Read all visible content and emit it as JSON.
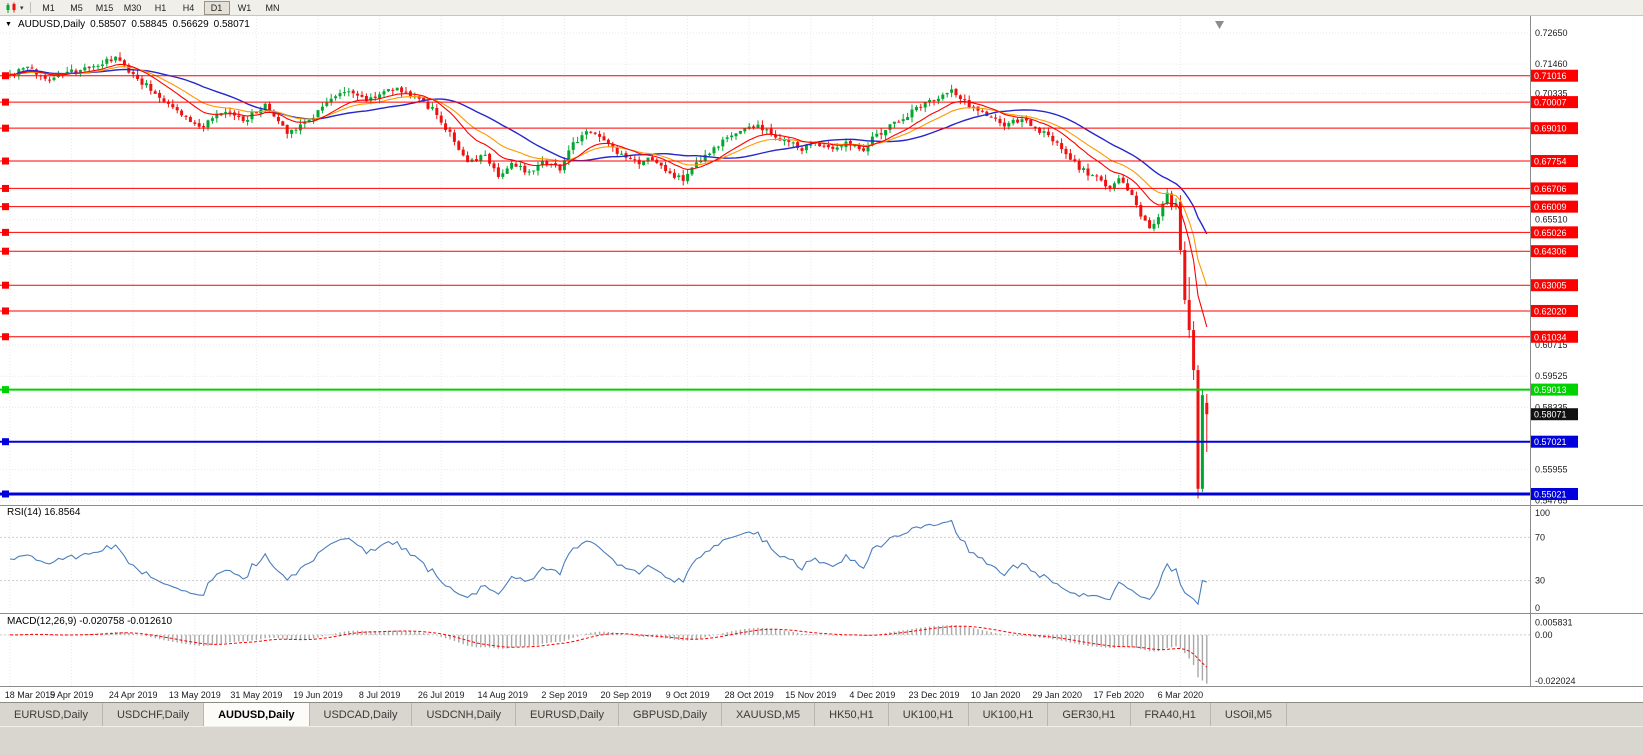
{
  "colors": {
    "up": "#00a832",
    "down": "#ee1111",
    "ma_fast": "#ff0000",
    "ma_mid": "#ff9900",
    "ma_slow": "#2626cc",
    "hline_red": "#ff0000",
    "hline_green": "#00d200",
    "hline_blue": "#0000dd",
    "current_badge": "#111111",
    "rsi": "#4a7ebd",
    "macd_hist": "#a8a8a8",
    "macd_signal": "#ff0000",
    "grid": "#e9e9e9",
    "level_grid": "#cfcfcf",
    "panel_border": "#8c8c8c",
    "axis_text": "#1a1a1a",
    "shift_marker": "#8c8c8c"
  },
  "icons": {
    "collapse": "▼",
    "dropdown_caret": "▾"
  },
  "toolbar": {
    "chart_type_icon": "candlestick-chart",
    "timeframes": [
      {
        "label": "M1",
        "active": false
      },
      {
        "label": "M5",
        "active": false
      },
      {
        "label": "M15",
        "active": false
      },
      {
        "label": "M30",
        "active": false
      },
      {
        "label": "H1",
        "active": false
      },
      {
        "label": "H4",
        "active": false
      },
      {
        "label": "D1",
        "active": true
      },
      {
        "label": "W1",
        "active": false
      },
      {
        "label": "MN",
        "active": false
      }
    ]
  },
  "chart": {
    "symbol": "AUDUSD,Daily",
    "ohlc": {
      "open": "0.58507",
      "high": "0.58845",
      "low": "0.56629",
      "close": "0.58071"
    }
  },
  "price_axis": {
    "scale_max": 0.733,
    "scale_min": 0.546,
    "labels": [
      {
        "label": "0.72650",
        "value": 0.7265
      },
      {
        "label": "0.71460",
        "value": 0.7146
      },
      {
        "label": "0.70335",
        "value": 0.70335
      },
      {
        "label": "0.65510",
        "value": 0.6551
      },
      {
        "label": "0.60715",
        "value": 0.60715
      },
      {
        "label": "0.59525",
        "value": 0.59525
      },
      {
        "label": "0.58335",
        "value": 0.58335
      },
      {
        "label": "0.55955",
        "value": 0.55955
      },
      {
        "label": "0.54765",
        "value": 0.54765
      }
    ]
  },
  "hlines": [
    {
      "label": "0.71016",
      "value": 0.71016,
      "color": "red",
      "width": 1
    },
    {
      "label": "0.70007",
      "value": 0.70007,
      "color": "red",
      "width": 1
    },
    {
      "label": "0.69010",
      "value": 0.6901,
      "color": "red",
      "width": 1
    },
    {
      "label": "0.67754",
      "value": 0.67754,
      "color": "red",
      "width": 1
    },
    {
      "label": "0.66706",
      "value": 0.66706,
      "color": "red",
      "width": 1
    },
    {
      "label": "0.66009",
      "value": 0.66009,
      "color": "red",
      "width": 1
    },
    {
      "label": "0.65026",
      "value": 0.65026,
      "color": "red",
      "width": 1
    },
    {
      "label": "0.64306",
      "value": 0.64306,
      "color": "red",
      "width": 1
    },
    {
      "label": "0.63005",
      "value": 0.63005,
      "color": "red",
      "width": 1
    },
    {
      "label": "0.62020",
      "value": 0.6202,
      "color": "red",
      "width": 1
    },
    {
      "label": "0.61034",
      "value": 0.61034,
      "color": "red",
      "width": 1
    },
    {
      "label": "0.59013",
      "value": 0.59013,
      "color": "green",
      "width": 2
    },
    {
      "label": "0.57021",
      "value": 0.57021,
      "color": "blue",
      "width": 2
    },
    {
      "label": "0.55021",
      "value": 0.55021,
      "color": "blue",
      "width": 3
    }
  ],
  "current_price": {
    "label": "0.58071",
    "value": 0.58071
  },
  "panels": {
    "rsi": {
      "label": "RSI(14) 16.8564",
      "value": "16.8564",
      "levels": [
        {
          "label": "100",
          "value": 100
        },
        {
          "label": "70",
          "value": 70
        },
        {
          "label": "30",
          "value": 30
        },
        {
          "label": "0",
          "value": 0
        }
      ]
    },
    "macd": {
      "label": "MACD(12,26,9) -0.020758 -0.012610",
      "main_value": "-0.020758",
      "signal_value": "-0.012610",
      "axis": [
        {
          "label": "0.005831",
          "value": 0.005831
        },
        {
          "label": "0.00",
          "value": 0
        },
        {
          "label": "-0.022024",
          "value": -0.022024
        }
      ],
      "scale_max": 0.0105,
      "scale_min": -0.0245
    }
  },
  "dates": [
    "18 Mar 2019",
    "5 Apr 2019",
    "24 Apr 2019",
    "13 May 2019",
    "31 May 2019",
    "19 Jun 2019",
    "8 Jul 2019",
    "26 Jul 2019",
    "14 Aug 2019",
    "2 Sep 2019",
    "20 Sep 2019",
    "9 Oct 2019",
    "28 Oct 2019",
    "15 Nov 2019",
    "4 Dec 2019",
    "23 Dec 2019",
    "10 Jan 2020",
    "29 Jan 2020",
    "17 Feb 2020",
    "6 Mar 2020"
  ],
  "tabs": [
    {
      "label": "EURUSD,Daily",
      "active": false
    },
    {
      "label": "USDCHF,Daily",
      "active": false
    },
    {
      "label": "AUDUSD,Daily",
      "active": true
    },
    {
      "label": "USDCAD,Daily",
      "active": false
    },
    {
      "label": "USDCNH,Daily",
      "active": false
    },
    {
      "label": "EURUSD,Daily",
      "active": false
    },
    {
      "label": "GBPUSD,Daily",
      "active": false
    },
    {
      "label": "XAUUSD,M5",
      "active": false
    },
    {
      "label": "HK50,H1",
      "active": false
    },
    {
      "label": "UK100,H1",
      "active": false
    },
    {
      "label": "UK100,H1",
      "active": false
    },
    {
      "label": "GER30,H1",
      "active": false
    },
    {
      "label": "FRA40,H1",
      "active": false
    },
    {
      "label": "USOil,M5",
      "active": false
    }
  ],
  "chart_data": {
    "type": "candlestick",
    "symbol": "AUDUSD",
    "timeframe": "Daily",
    "title": "AUDUSD,Daily 0.58507 0.58845 0.56629 0.58071",
    "x_range": [
      "18 Mar 2019",
      "13 Mar 2020"
    ],
    "y_range": [
      0.546,
      0.733
    ],
    "candle_count": 273,
    "seed": 42,
    "anchors": [
      [
        0,
        0.7105
      ],
      [
        4,
        0.7132
      ],
      [
        8,
        0.709
      ],
      [
        12,
        0.711
      ],
      [
        17,
        0.7124
      ],
      [
        24,
        0.7168
      ],
      [
        28,
        0.7105
      ],
      [
        35,
        0.701
      ],
      [
        43,
        0.6902
      ],
      [
        49,
        0.6963
      ],
      [
        53,
        0.6932
      ],
      [
        58,
        0.6988
      ],
      [
        63,
        0.6887
      ],
      [
        68,
        0.6932
      ],
      [
        72,
        0.7005
      ],
      [
        77,
        0.7046
      ],
      [
        81,
        0.7009
      ],
      [
        87,
        0.7053
      ],
      [
        92,
        0.7028
      ],
      [
        96,
        0.6971
      ],
      [
        101,
        0.6856
      ],
      [
        104,
        0.6762
      ],
      [
        108,
        0.6799
      ],
      [
        111,
        0.6722
      ],
      [
        114,
        0.676
      ],
      [
        118,
        0.6735
      ],
      [
        121,
        0.678
      ],
      [
        125,
        0.675
      ],
      [
        128,
        0.6837
      ],
      [
        131,
        0.6893
      ],
      [
        135,
        0.6856
      ],
      [
        138,
        0.68
      ],
      [
        143,
        0.6762
      ],
      [
        146,
        0.6788
      ],
      [
        149,
        0.6735
      ],
      [
        153,
        0.6703
      ],
      [
        156,
        0.676
      ],
      [
        160,
        0.6818
      ],
      [
        163,
        0.6864
      ],
      [
        166,
        0.6893
      ],
      [
        170,
        0.6912
      ],
      [
        173,
        0.6875
      ],
      [
        177,
        0.6848
      ],
      [
        180,
        0.6818
      ],
      [
        183,
        0.6848
      ],
      [
        187,
        0.6825
      ],
      [
        190,
        0.6848
      ],
      [
        194,
        0.6825
      ],
      [
        197,
        0.6875
      ],
      [
        200,
        0.6912
      ],
      [
        204,
        0.695
      ],
      [
        207,
        0.6989
      ],
      [
        212,
        0.7028
      ],
      [
        214,
        0.7046
      ],
      [
        216,
        0.7009
      ],
      [
        220,
        0.6971
      ],
      [
        223,
        0.694
      ],
      [
        226,
        0.6912
      ],
      [
        230,
        0.6932
      ],
      [
        233,
        0.6902
      ],
      [
        237,
        0.6856
      ],
      [
        240,
        0.6799
      ],
      [
        243,
        0.675
      ],
      [
        247,
        0.671
      ],
      [
        250,
        0.6672
      ],
      [
        252,
        0.671
      ],
      [
        255,
        0.6645
      ],
      [
        257,
        0.6569
      ],
      [
        259,
        0.6511
      ],
      [
        261,
        0.6569
      ],
      [
        263,
        0.6645
      ],
      [
        264,
        0.6607
      ],
      [
        265,
        0.6618
      ]
    ],
    "explicit_candles": [
      [
        266,
        0.662,
        0.6645,
        0.6418,
        0.6435
      ],
      [
        267,
        0.6435,
        0.6468,
        0.6228,
        0.6244
      ],
      [
        268,
        0.6244,
        0.6332,
        0.6098,
        0.6129
      ],
      [
        269,
        0.6129,
        0.6163,
        0.5938,
        0.5976
      ],
      [
        270,
        0.5976,
        0.5995,
        0.5485,
        0.5522
      ],
      [
        271,
        0.5522,
        0.5905,
        0.551,
        0.588
      ],
      [
        272,
        0.58507,
        0.58845,
        0.56629,
        0.58071
      ]
    ],
    "ma_periods": {
      "fast": 12,
      "mid": 20,
      "slow": 30
    },
    "rsi_period": 14,
    "rsi_last": 16.8564,
    "macd": {
      "fast": 12,
      "slow": 26,
      "signal": 9,
      "last_main": -0.020758,
      "last_signal": -0.01261
    }
  }
}
